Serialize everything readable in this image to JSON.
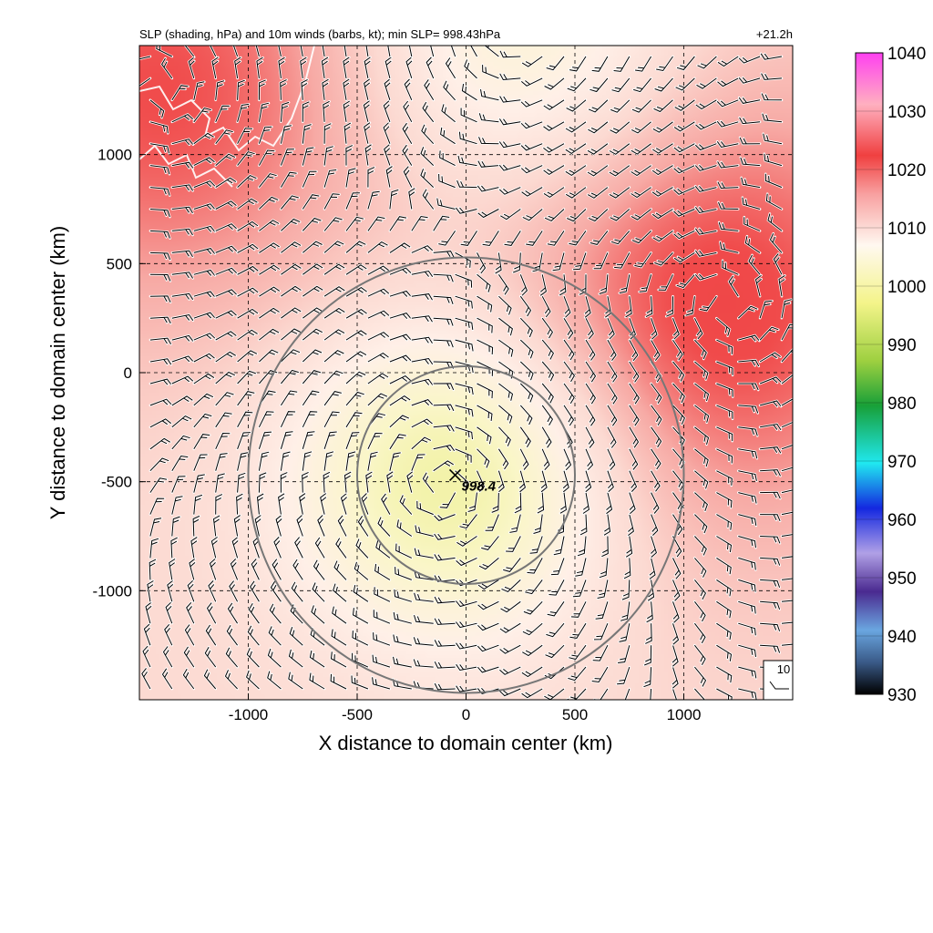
{
  "chart_data": {
    "type": "heatmap",
    "title": "SLP (shading, hPa) and 10m winds (barbs, kt); min SLP= 998.43hPa",
    "time_label": "+21.2h",
    "xlabel": "X distance to domain center (km)",
    "ylabel": "Y distance to domain center (km)",
    "xlim": [
      -1500,
      1500
    ],
    "ylim": [
      -1500,
      1500
    ],
    "x_ticks": [
      -1000,
      -500,
      0,
      500,
      1000
    ],
    "y_ticks": [
      -1000,
      -500,
      0,
      500,
      1000
    ],
    "x_tick_labels": [
      "-1000",
      "-500",
      "0",
      "500",
      "1000"
    ],
    "y_tick_labels": [
      "-1000",
      "-500",
      "0",
      "500",
      "1000"
    ],
    "grid": true,
    "colorbar": {
      "min": 930,
      "max": 1040,
      "ticks": [
        930,
        940,
        950,
        960,
        970,
        980,
        990,
        1000,
        1010,
        1020,
        1030,
        1040
      ],
      "tick_labels": [
        "930",
        "940",
        "950",
        "960",
        "970",
        "980",
        "990",
        "1000",
        "1010",
        "1020",
        "1030",
        "1040"
      ],
      "placement": "right"
    },
    "min_slp": {
      "x": -50,
      "y": -470,
      "value": 998.43,
      "label": "998.4"
    },
    "range_rings_km": [
      500,
      1000
    ],
    "ring_center": {
      "x": 0,
      "y": -470
    },
    "reference_barb": {
      "label": "10",
      "speed_kt": 10
    },
    "pressure_features": [
      {
        "kind": "low",
        "x": -50,
        "y": -470,
        "value": 998.4
      },
      {
        "kind": "low",
        "x": 250,
        "y": 1500,
        "value": 1004
      },
      {
        "kind": "high",
        "x": 1100,
        "y": 300,
        "value": 1021
      },
      {
        "kind": "high",
        "x": -1400,
        "y": 1300,
        "value": 1020
      }
    ]
  },
  "colors": {
    "ring": "#777777",
    "grid": "#000000",
    "barb": "#000000",
    "coastline": "#ffffff"
  }
}
